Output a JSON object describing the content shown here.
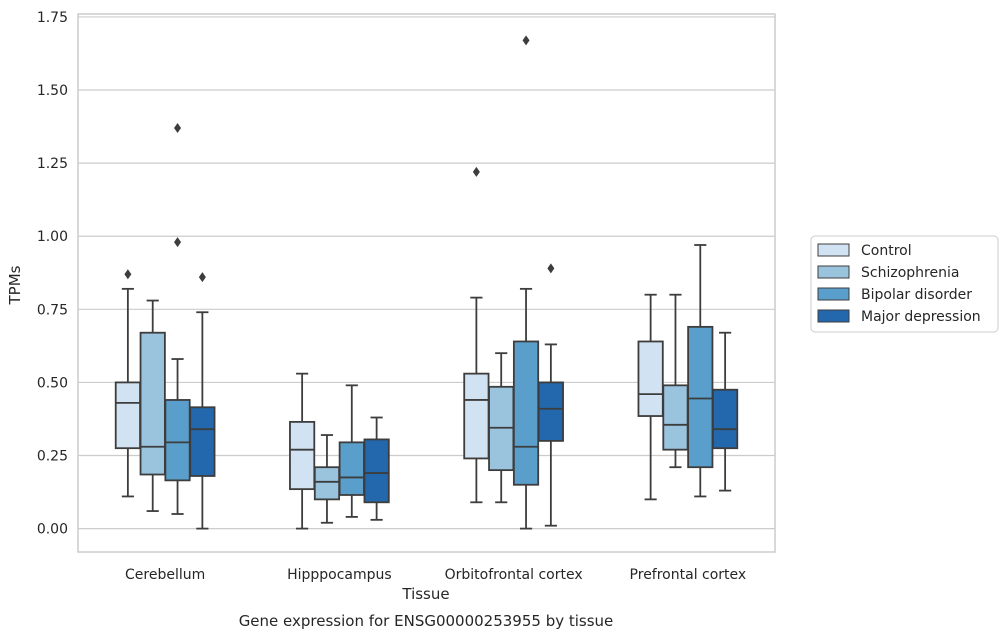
{
  "chart_data": {
    "type": "boxplot",
    "xlabel": "Tissue",
    "ylabel": "TPMs",
    "caption": "Gene expression for ENSG00000253955 by tissue",
    "ylim": [
      -0.08,
      1.76
    ],
    "yticks": [
      "0.00",
      "0.25",
      "0.50",
      "0.75",
      "1.00",
      "1.25",
      "1.50",
      "1.75"
    ],
    "grid": "horizontal",
    "legend_position": "right",
    "categories": [
      "Cerebellum",
      "Hipppocampus",
      "Orbitofrontal cortex",
      "Prefrontal cortex"
    ],
    "series": [
      {
        "name": "Control",
        "color": "#d1e2f2",
        "boxes": [
          {
            "whislo": 0.11,
            "q1": 0.275,
            "med": 0.43,
            "q3": 0.5,
            "whishi": 0.82,
            "fliers": [
              0.87
            ]
          },
          {
            "whislo": 0.0,
            "q1": 0.135,
            "med": 0.27,
            "q3": 0.365,
            "whishi": 0.53,
            "fliers": []
          },
          {
            "whislo": 0.09,
            "q1": 0.24,
            "med": 0.44,
            "q3": 0.53,
            "whishi": 0.79,
            "fliers": [
              1.22
            ]
          },
          {
            "whislo": 0.1,
            "q1": 0.385,
            "med": 0.46,
            "q3": 0.64,
            "whishi": 0.8,
            "fliers": []
          }
        ]
      },
      {
        "name": "Schizophrenia",
        "color": "#9ac3de",
        "boxes": [
          {
            "whislo": 0.06,
            "q1": 0.185,
            "med": 0.28,
            "q3": 0.67,
            "whishi": 0.78,
            "fliers": []
          },
          {
            "whislo": 0.02,
            "q1": 0.1,
            "med": 0.16,
            "q3": 0.21,
            "whishi": 0.32,
            "fliers": []
          },
          {
            "whislo": 0.09,
            "q1": 0.2,
            "med": 0.345,
            "q3": 0.485,
            "whishi": 0.6,
            "fliers": []
          },
          {
            "whislo": 0.21,
            "q1": 0.27,
            "med": 0.355,
            "q3": 0.49,
            "whishi": 0.8,
            "fliers": []
          }
        ]
      },
      {
        "name": "Bipolar disorder",
        "color": "#5a9ecb",
        "boxes": [
          {
            "whislo": 0.05,
            "q1": 0.165,
            "med": 0.295,
            "q3": 0.44,
            "whishi": 0.58,
            "fliers": [
              0.98,
              1.37
            ]
          },
          {
            "whislo": 0.04,
            "q1": 0.115,
            "med": 0.175,
            "q3": 0.295,
            "whishi": 0.49,
            "fliers": []
          },
          {
            "whislo": 0.0,
            "q1": 0.15,
            "med": 0.28,
            "q3": 0.64,
            "whishi": 0.82,
            "fliers": [
              1.67
            ]
          },
          {
            "whislo": 0.11,
            "q1": 0.21,
            "med": 0.445,
            "q3": 0.69,
            "whishi": 0.97,
            "fliers": []
          }
        ]
      },
      {
        "name": "Major depression",
        "color": "#2367ac",
        "boxes": [
          {
            "whislo": 0.0,
            "q1": 0.18,
            "med": 0.34,
            "q3": 0.415,
            "whishi": 0.74,
            "fliers": [
              0.86
            ]
          },
          {
            "whislo": 0.03,
            "q1": 0.09,
            "med": 0.19,
            "q3": 0.305,
            "whishi": 0.38,
            "fliers": []
          },
          {
            "whislo": 0.01,
            "q1": 0.3,
            "med": 0.41,
            "q3": 0.5,
            "whishi": 0.63,
            "fliers": [
              0.89
            ]
          },
          {
            "whislo": 0.13,
            "q1": 0.275,
            "med": 0.34,
            "q3": 0.475,
            "whishi": 0.67,
            "fliers": []
          }
        ]
      }
    ]
  },
  "style": {
    "grid_color": "#cccccc",
    "frame_color": "#cccccc",
    "line_color": "#3d3d3d",
    "text_color": "#262626"
  }
}
